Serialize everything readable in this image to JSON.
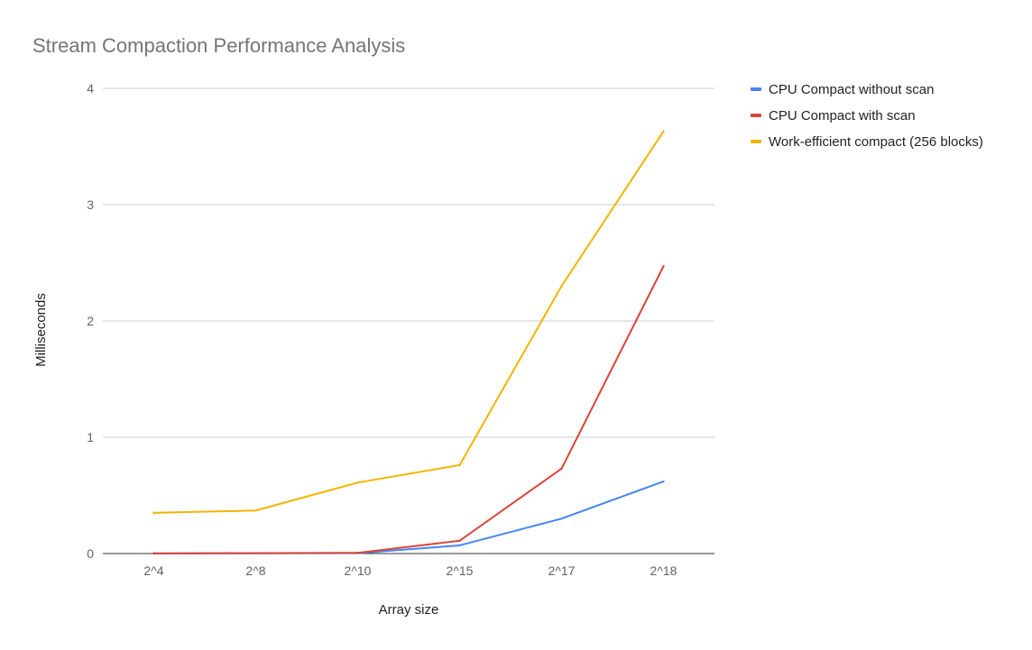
{
  "chart_data": {
    "type": "line",
    "title": "Stream Compaction Performance Analysis",
    "xlabel": "Array size",
    "ylabel": "Milliseconds",
    "categories": [
      "2^4",
      "2^8",
      "2^10",
      "2^15",
      "2^17",
      "2^18"
    ],
    "ylim": [
      0,
      4
    ],
    "yticks": [
      0,
      1,
      2,
      3,
      4
    ],
    "grid": true,
    "legend_position": "right",
    "series": [
      {
        "name": "CPU Compact without scan",
        "color": "#4285f4",
        "values": [
          0.001,
          0.002,
          0.003,
          0.07,
          0.3,
          0.62
        ]
      },
      {
        "name": "CPU Compact with scan",
        "color": "#db4437",
        "values": [
          0.001,
          0.003,
          0.006,
          0.11,
          0.73,
          2.47
        ]
      },
      {
        "name": "Work-efficient compact (256 blocks)",
        "color": "#f4b400",
        "values": [
          0.35,
          0.37,
          0.61,
          0.76,
          2.3,
          3.63
        ]
      }
    ]
  }
}
